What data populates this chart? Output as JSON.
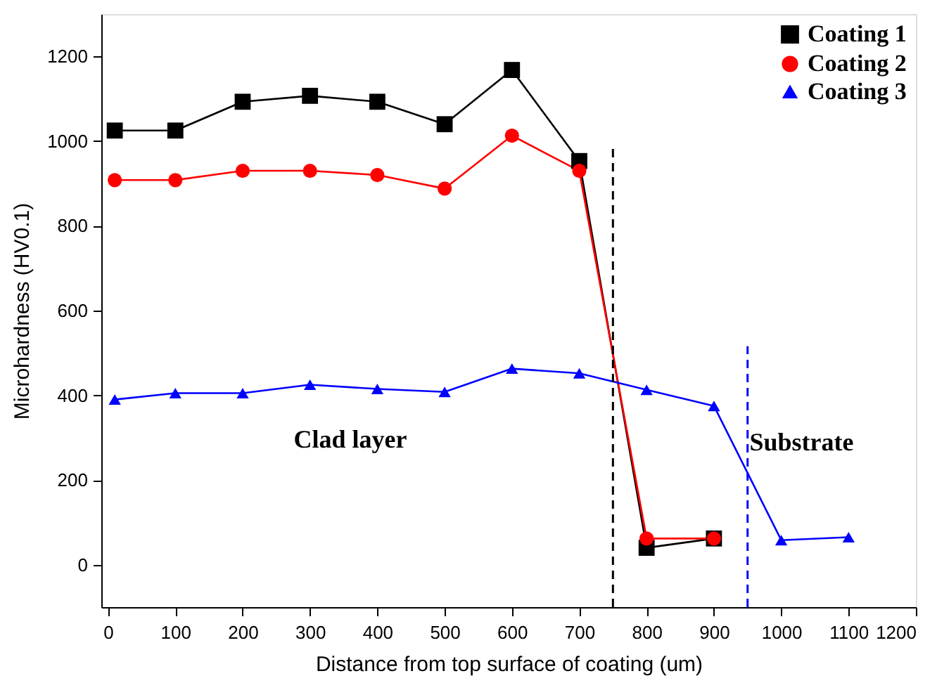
{
  "chart_data": {
    "type": "line",
    "xlabel": "Distance from top surface of coating (um)",
    "ylabel": "Microhardness (HV0.1)",
    "xlim": [
      -10,
      1200
    ],
    "xticks": [
      0,
      100,
      200,
      300,
      400,
      500,
      600,
      700,
      800,
      900,
      1000,
      1100,
      1200
    ],
    "ylim": [
      -100,
      1300
    ],
    "yticks": [
      0,
      200,
      400,
      600,
      800,
      1000,
      1200
    ],
    "grid": false,
    "legend": "top right",
    "line_style": "solid",
    "series": [
      {
        "name": "Coating 1",
        "color": "#000000",
        "marker": "square",
        "x": [
          10,
          100,
          200,
          300,
          400,
          500,
          600,
          700,
          800,
          900
        ],
        "values": [
          1025,
          1025,
          1093,
          1107,
          1093,
          1040,
          1168,
          953,
          40,
          62
        ]
      },
      {
        "name": "Coating 2",
        "color": "#ff0000",
        "marker": "circle",
        "x": [
          10,
          100,
          200,
          300,
          400,
          500,
          600,
          700,
          800,
          900
        ],
        "values": [
          908,
          908,
          930,
          930,
          920,
          888,
          1013,
          930,
          62,
          62
        ]
      },
      {
        "name": "Coating 3",
        "color": "#0000ff",
        "marker": "triangle",
        "x": [
          10,
          100,
          200,
          300,
          400,
          500,
          600,
          700,
          800,
          900,
          1000,
          1100
        ],
        "values": [
          390,
          405,
          405,
          425,
          415,
          408,
          463,
          452,
          413,
          375,
          58,
          65
        ]
      }
    ],
    "ref_lines": [
      {
        "axis": "x",
        "value": 750,
        "color": "#000000",
        "line_style": "dashed"
      },
      {
        "axis": "x",
        "value": 950,
        "color": "#0000ff",
        "line_style": "dashed"
      }
    ],
    "annotations": [
      "Clad layer",
      "Substrate"
    ]
  }
}
